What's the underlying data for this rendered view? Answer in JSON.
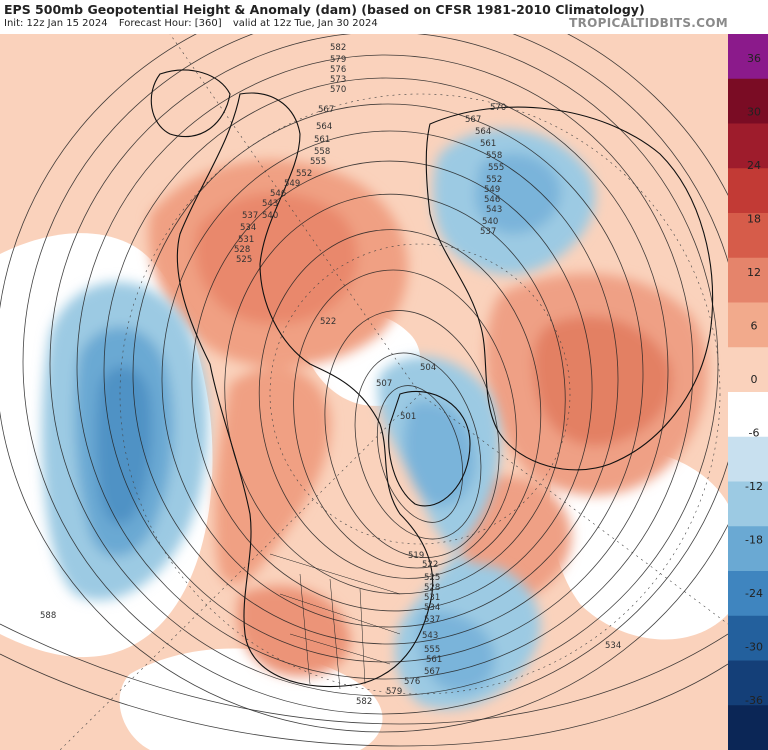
{
  "header": {
    "title": "EPS 500mb Geopotential Height & Anomaly (dam) (based on CFSR 1981-2010 Climatology)",
    "init": "Init: 12z Jan 15 2024",
    "forecast_hour": "Forecast Hour: [360]",
    "valid": "valid at 12z Tue, Jan 30 2024",
    "source": "TROPICALTIDBITS.COM"
  },
  "colorbar": {
    "ticks": [
      "36",
      "30",
      "24",
      "18",
      "12",
      "6",
      "0",
      "-6",
      "-12",
      "-18",
      "-24",
      "-30",
      "-36"
    ],
    "colors": [
      "#8b1a8b",
      "#7a0c24",
      "#9e1c2c",
      "#c23a35",
      "#d65c4a",
      "#e5846b",
      "#f2aa8c",
      "#fad2bc",
      "#ffffff",
      "#c8e0ef",
      "#9ccae3",
      "#6aa9d3",
      "#3f85bf",
      "#23609d",
      "#143f78",
      "#0b2656"
    ]
  },
  "map": {
    "contour_labels": [
      {
        "text": "582"
      },
      {
        "text": "579"
      },
      {
        "text": "576"
      },
      {
        "text": "573"
      },
      {
        "text": "570"
      },
      {
        "text": "567"
      },
      {
        "text": "564"
      },
      {
        "text": "561"
      },
      {
        "text": "558"
      },
      {
        "text": "555"
      },
      {
        "text": "552"
      },
      {
        "text": "549"
      },
      {
        "text": "546"
      },
      {
        "text": "543"
      },
      {
        "text": "540"
      },
      {
        "text": "537"
      },
      {
        "text": "534"
      },
      {
        "text": "531"
      },
      {
        "text": "528"
      },
      {
        "text": "525"
      },
      {
        "text": "522"
      },
      {
        "text": "507"
      },
      {
        "text": "504"
      },
      {
        "text": "501"
      },
      {
        "text": "588"
      },
      {
        "text": "519"
      },
      {
        "text": "522"
      },
      {
        "text": "525"
      },
      {
        "text": "528"
      },
      {
        "text": "531"
      },
      {
        "text": "534"
      },
      {
        "text": "537"
      },
      {
        "text": "543"
      },
      {
        "text": "555"
      },
      {
        "text": "561"
      },
      {
        "text": "567"
      },
      {
        "text": "576"
      },
      {
        "text": "579"
      },
      {
        "text": "582"
      },
      {
        "text": "570"
      },
      {
        "text": "567"
      },
      {
        "text": "564"
      },
      {
        "text": "561"
      },
      {
        "text": "558"
      },
      {
        "text": "555"
      },
      {
        "text": "552"
      },
      {
        "text": "549"
      },
      {
        "text": "546"
      },
      {
        "text": "543"
      },
      {
        "text": "540"
      },
      {
        "text": "537"
      },
      {
        "text": "534"
      },
      {
        "text": "588"
      }
    ]
  }
}
